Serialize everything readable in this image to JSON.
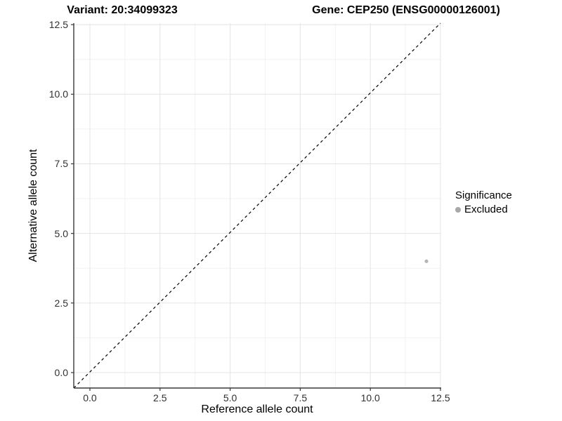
{
  "titles": {
    "variant": "Variant: 20:34099323",
    "gene": "Gene: CEP250 (ENSG00000126001)"
  },
  "chart_data": {
    "type": "scatter",
    "xlabel": "Reference allele count",
    "ylabel": "Alternative allele count",
    "x_tick_values": [
      0,
      2.5,
      5,
      7.5,
      10,
      12.5
    ],
    "x_tick_labels": [
      "0.0",
      "2.5",
      "5.0",
      "7.5",
      "10.0",
      "12.5"
    ],
    "y_tick_values": [
      0,
      2.5,
      5,
      7.5,
      10,
      12.5
    ],
    "y_tick_labels": [
      "0.0",
      "2.5",
      "5.0",
      "7.5",
      "10.0",
      "12.5"
    ],
    "xlim": [
      -0.576,
      12.5
    ],
    "ylim": [
      -0.554,
      12.553
    ],
    "grid": true,
    "series": [
      {
        "name": "Excluded",
        "color": "#b5b5b5",
        "points": [
          {
            "x": 12,
            "y": 4
          }
        ]
      }
    ],
    "reference_line": {
      "label": "y = x",
      "style": "dashed",
      "color": "#000000"
    },
    "legend": {
      "position": "right",
      "title": "Significance",
      "items": [
        {
          "label": "Excluded",
          "color": "#a8a8a8"
        }
      ]
    }
  },
  "colors": {
    "background": "#ffffff",
    "grid_major": "#e4e4e4",
    "grid_minor": "#f1f1f1",
    "axis_line": "#383838",
    "tick_mark": "#383838",
    "tick_text": "#303030",
    "point": "#b5b5b5",
    "legend_dot": "#a8a8a8"
  }
}
